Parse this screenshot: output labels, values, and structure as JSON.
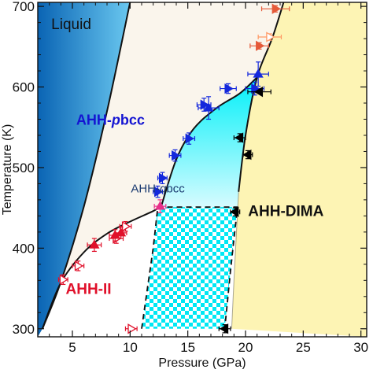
{
  "chart_data": {
    "type": "scatter",
    "title": "",
    "xlabel": "Pressure (GPa)",
    "ylabel": "Temperature (K)",
    "xlim": [
      2,
      30.5
    ],
    "ylim": [
      290,
      705
    ],
    "xticks": [
      5,
      10,
      15,
      20,
      25,
      30
    ],
    "yticks": [
      300,
      400,
      500,
      600,
      700
    ],
    "grid": false,
    "legend": "none",
    "colors": {
      "liquid_dark": "#0a64b4",
      "liquid_light": "#6ac8f0",
      "pbcc_fill": "#faf5ec",
      "qbcc_top": "#00f0f8",
      "qbcc_bottom": "#d6fbff",
      "checker": "#00e8f4",
      "dima_fill": "#fdf4b4",
      "ahh2_fill": "#ffffff"
    },
    "regions": [
      {
        "id": "liquid",
        "label": "Liquid",
        "color": "#111111",
        "at": [
          4.9,
          672
        ]
      },
      {
        "id": "pbcc",
        "label": "AHH-",
        "italic": "p",
        "suffix": "bcc",
        "color": "#1414d2",
        "at": [
          8.3,
          553
        ]
      },
      {
        "id": "qbcc",
        "label": "AHH-",
        "italic": "q",
        "suffix": "bcc",
        "color": "#1a3a70",
        "at": [
          12.4,
          469
        ]
      },
      {
        "id": "dima",
        "label": "AHH-DIMA",
        "color": "#111111",
        "at": [
          23.5,
          440
        ]
      },
      {
        "id": "ahh2",
        "label": "AHH-II",
        "color": "#e0102a",
        "at": [
          6.4,
          343
        ]
      }
    ],
    "boundaries": {
      "melting_liquid": [
        [
          2.4,
          300
        ],
        [
          4,
          358
        ],
        [
          6,
          452
        ],
        [
          8,
          570
        ],
        [
          10,
          705
        ]
      ],
      "ahh2_upper": [
        [
          2.4,
          300
        ],
        [
          4,
          357
        ],
        [
          6,
          395
        ],
        [
          8,
          418
        ],
        [
          10,
          433
        ],
        [
          12,
          446
        ],
        [
          12.7,
          452
        ]
      ],
      "qbcc_upper": [
        [
          12.7,
          452
        ],
        [
          14,
          510
        ],
        [
          15.5,
          548
        ],
        [
          17.5,
          574
        ],
        [
          19.5,
          592
        ],
        [
          21,
          612
        ]
      ],
      "dima_right": [
        [
          18.8,
          300
        ],
        [
          19,
          360
        ],
        [
          19.4,
          470
        ],
        [
          20,
          540
        ],
        [
          21,
          612
        ],
        [
          22.3,
          660
        ],
        [
          23.3,
          705
        ]
      ],
      "qbcc_checker": [
        [
          11,
          300
        ],
        [
          12,
          400
        ],
        [
          12.4,
          451
        ],
        [
          19.3,
          451
        ],
        [
          18.7,
          372
        ],
        [
          18.2,
          300
        ]
      ]
    },
    "series": [
      {
        "name": "",
        "marker": "triangle-right",
        "color": "#e0102a",
        "filled": false,
        "points": [
          [
            4.2,
            361
          ],
          [
            5.5,
            378
          ],
          [
            8.8,
            412
          ],
          [
            9.6,
            427
          ],
          [
            10.1,
            300
          ]
        ],
        "xerr": [
          0.4,
          0.5,
          0.6,
          0.5,
          0.5
        ],
        "yerr": [
          6,
          6,
          6,
          6,
          0
        ]
      },
      {
        "name": "",
        "marker": "triangle-up",
        "color": "#e0102a",
        "filled": true,
        "points": [
          [
            6.9,
            404
          ],
          [
            8.7,
            416
          ],
          [
            9.2,
            419
          ]
        ],
        "xerr": [
          0.6,
          0.5,
          0.5
        ],
        "yerr": [
          8,
          7,
          7
        ]
      },
      {
        "name": "",
        "marker": "triangle-up",
        "color": "#e8308a",
        "filled": true,
        "points": [
          [
            12.6,
            452
          ]
        ],
        "xerr": [
          0.5
        ],
        "yerr": [
          8
        ]
      },
      {
        "name": "",
        "marker": "triangle-right",
        "color": "#e55a3a",
        "filled": true,
        "points": [
          [
            22.6,
            697
          ],
          [
            21.2,
            651
          ]
        ],
        "xerr": [
          1.2,
          0.8
        ],
        "yerr": [
          4,
          4
        ]
      },
      {
        "name": "",
        "marker": "triangle-right",
        "color": "#ff9a66",
        "filled": false,
        "points": [
          [
            22.1,
            662
          ]
        ],
        "xerr": [
          1.0
        ],
        "yerr": [
          4
        ]
      },
      {
        "name": "",
        "marker": "triangle-right",
        "color": "#1428dc",
        "filled": true,
        "points": [
          [
            12.4,
            470
          ],
          [
            12.8,
            487
          ],
          [
            13.9,
            515
          ],
          [
            15.1,
            536
          ],
          [
            16.4,
            578
          ],
          [
            18.5,
            598
          ],
          [
            20.8,
            598
          ]
        ],
        "xerr": [
          0.4,
          0.4,
          0.5,
          0.5,
          0.6,
          0.7,
          0.8
        ],
        "yerr": [
          7,
          7,
          7,
          7,
          8,
          6,
          8
        ]
      },
      {
        "name": "",
        "marker": "triangle-up",
        "color": "#1428dc",
        "filled": true,
        "points": [
          [
            16.8,
            574
          ],
          [
            21.1,
            616
          ]
        ],
        "xerr": [
          0.9,
          0.9
        ],
        "yerr": [
          14,
          15
        ]
      },
      {
        "name": "",
        "marker": "triangle-left",
        "color": "#000000",
        "filled": true,
        "points": [
          [
            21.2,
            594
          ],
          [
            19.5,
            537
          ],
          [
            20.2,
            516
          ],
          [
            19.1,
            445
          ],
          [
            18.2,
            300
          ]
        ],
        "xerr": [
          1.0,
          0.5,
          0.4,
          0.4,
          0.5
        ],
        "yerr": [
          0,
          5,
          5,
          5,
          5
        ]
      }
    ]
  }
}
